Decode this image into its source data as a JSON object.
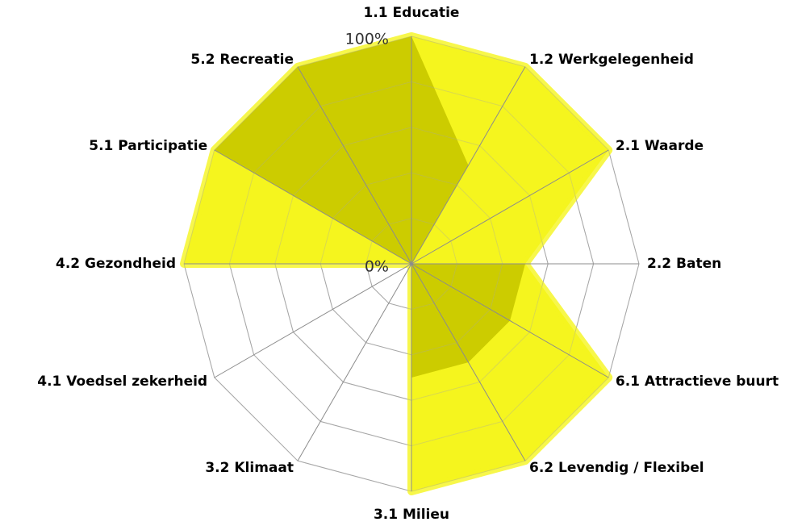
{
  "chart_data": {
    "type": "radar",
    "categories": [
      "1.1 Educatie",
      "1.2 Werkgelegenheid",
      "2.1 Waarde",
      "2.2 Baten",
      "6.1 Attractieve buurt",
      "6.2 Levendig / Flexibel",
      "3.1 Milieu",
      "3.2 Klimaat",
      "4.1 Voedsel zekerheid",
      "4.2 Gezondheid",
      "5.1 Participatie",
      "5.2 Recreatie"
    ],
    "series": [
      {
        "color": "#f5f51e",
        "values": [
          100,
          100,
          100,
          50,
          100,
          100,
          100,
          0,
          0,
          100,
          100,
          100
        ]
      },
      {
        "color": "#cccc00",
        "values": [
          100,
          50,
          0,
          50,
          50,
          50,
          50,
          0,
          0,
          0,
          100,
          100
        ]
      }
    ],
    "rlim": [
      0,
      100
    ],
    "rticks": [
      {
        "value": 0,
        "label": "0%"
      },
      {
        "value": 100,
        "label": "100%"
      }
    ],
    "grid_values": [
      20,
      40,
      60,
      80,
      100
    ],
    "grid": true
  }
}
